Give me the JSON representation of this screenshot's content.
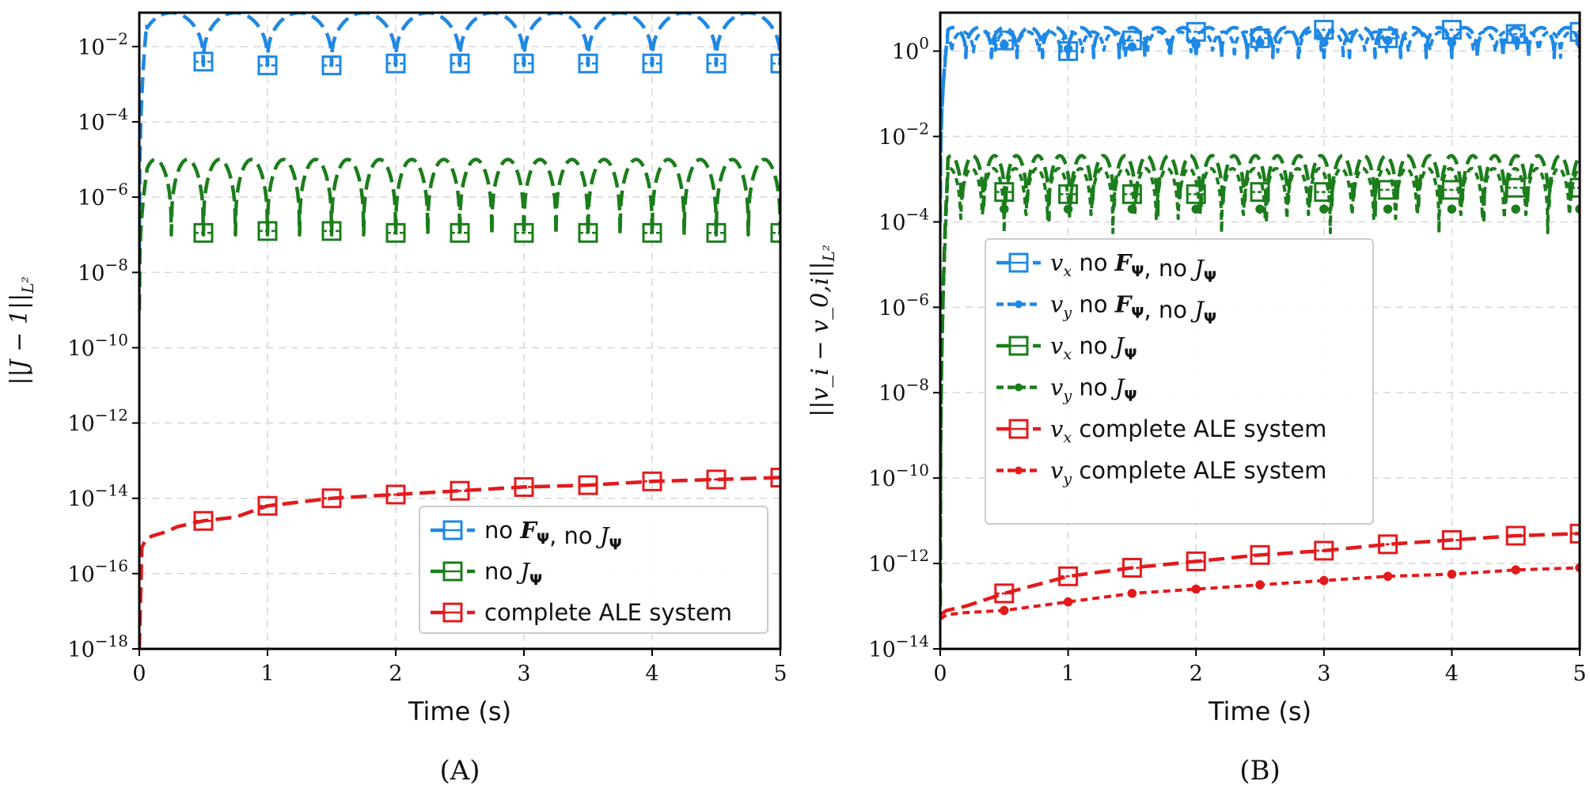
{
  "chart_data": [
    {
      "type": "line",
      "panel_label": "(A)",
      "xlabel": "Time (s)",
      "ylabel": "||J − 1||",
      "ylabel_sub": "L²",
      "yscale": "log",
      "xlim": [
        0,
        5
      ],
      "ylim_exp": [
        -18,
        -1.1
      ],
      "x_ticks": [
        "0",
        "1",
        "2",
        "3",
        "4",
        "5"
      ],
      "y_ticks": [
        {
          "exp": -18,
          "label": "10",
          "sup": "−18"
        },
        {
          "exp": -16,
          "label": "10",
          "sup": "−16"
        },
        {
          "exp": -14,
          "label": "10",
          "sup": "−14"
        },
        {
          "exp": -12,
          "label": "10",
          "sup": "−12"
        },
        {
          "exp": -10,
          "label": "10",
          "sup": "−10"
        },
        {
          "exp": -8,
          "label": "10",
          "sup": "−8"
        },
        {
          "exp": -6,
          "label": "10",
          "sup": "−6"
        },
        {
          "exp": -4,
          "label": "10",
          "sup": "−4"
        },
        {
          "exp": -2,
          "label": "10",
          "sup": "−2"
        }
      ],
      "grid": true,
      "legend_position": "lower-right",
      "series": [
        {
          "name": "no F_Ψ, no J_Ψ",
          "legend_parts": [
            "no ",
            "F",
            "Ψ",
            ", no ",
            "J",
            "Ψ"
          ],
          "color": "#1e88e5",
          "marker": "square",
          "style": "oscillating",
          "base_exp": -1.8,
          "amp": 0.7,
          "period": 0.5,
          "phase": 0.0,
          "startup_from": -7.5,
          "marker_x": [
            0.5,
            1.0,
            1.5,
            2.0,
            2.5,
            3.0,
            3.5,
            4.0,
            4.5,
            5.0
          ],
          "marker_exp": [
            -2.4,
            -2.5,
            -2.5,
            -2.45,
            -2.45,
            -2.45,
            -2.45,
            -2.45,
            -2.45,
            -2.45
          ]
        },
        {
          "name": "no J_Ψ",
          "legend_parts": [
            "no ",
            "",
            "",
            "",
            "J",
            "Ψ"
          ],
          "color": "#1b7d1b",
          "marker": "square",
          "style": "oscillating",
          "base_exp": -6.0,
          "amp": 1.0,
          "period": 0.25,
          "phase": 0.0,
          "startup_from": -9.0,
          "marker_x": [
            0.5,
            1.0,
            1.5,
            2.0,
            2.5,
            3.0,
            3.5,
            4.0,
            4.5,
            5.0
          ],
          "marker_exp": [
            -6.95,
            -6.9,
            -6.9,
            -6.95,
            -6.95,
            -6.95,
            -6.95,
            -6.95,
            -6.95,
            -6.95
          ]
        },
        {
          "name": "complete ALE system",
          "legend_parts": [
            "complete ALE system",
            "",
            "",
            "",
            "",
            ""
          ],
          "color": "#e31a1c",
          "marker": "square",
          "style": "smooth",
          "x": [
            0.0,
            0.02,
            0.05,
            0.1,
            0.2,
            0.3,
            0.5,
            0.75,
            1.0,
            1.5,
            2.0,
            2.5,
            3.0,
            3.5,
            4.0,
            4.5,
            5.0
          ],
          "y_exp": [
            -18.0,
            -15.3,
            -15.1,
            -15.0,
            -14.9,
            -14.75,
            -14.6,
            -14.5,
            -14.2,
            -14.0,
            -13.9,
            -13.8,
            -13.7,
            -13.65,
            -13.55,
            -13.5,
            -13.45
          ],
          "marker_x": [
            0.5,
            1.0,
            1.5,
            2.0,
            2.5,
            3.0,
            3.5,
            4.0,
            4.5,
            5.0
          ],
          "marker_exp": [
            -14.6,
            -14.2,
            -14.0,
            -13.9,
            -13.8,
            -13.7,
            -13.65,
            -13.55,
            -13.5,
            -13.45
          ]
        }
      ]
    },
    {
      "type": "line",
      "panel_label": "(B)",
      "xlabel": "Time (s)",
      "ylabel": "||v_i − v_0,i||",
      "ylabel_sub": "L²",
      "yscale": "log",
      "xlim": [
        0,
        5
      ],
      "ylim_exp": [
        -14,
        0.9
      ],
      "x_ticks": [
        "0",
        "1",
        "2",
        "3",
        "4",
        "5"
      ],
      "y_ticks": [
        {
          "exp": -14,
          "label": "10",
          "sup": "−14"
        },
        {
          "exp": -12,
          "label": "10",
          "sup": "−12"
        },
        {
          "exp": -10,
          "label": "10",
          "sup": "−10"
        },
        {
          "exp": -8,
          "label": "10",
          "sup": "−8"
        },
        {
          "exp": -6,
          "label": "10",
          "sup": "−6"
        },
        {
          "exp": -4,
          "label": "10",
          "sup": "−4"
        },
        {
          "exp": -2,
          "label": "10",
          "sup": "−2"
        },
        {
          "exp": 0,
          "label": "10",
          "sup": "0"
        }
      ],
      "grid": true,
      "legend_position": "center-left",
      "series": [
        {
          "name": "v_x no F_Ψ, no J_Ψ",
          "legend_parts": [
            "v",
            "x",
            " no ",
            "F",
            "Ψ",
            ", no ",
            "J",
            "Ψ"
          ],
          "color": "#1e88e5",
          "marker": "square",
          "style": "oscillating",
          "base_exp": 0.2,
          "amp": 0.35,
          "period": 0.2,
          "phase": 0.0,
          "startup_from": -4.0,
          "marker_x": [
            0.5,
            1.0,
            1.5,
            2.0,
            2.5,
            3.0,
            3.5,
            4.0,
            4.5,
            5.0
          ],
          "marker_exp": [
            0.25,
            0.0,
            0.25,
            0.45,
            0.3,
            0.5,
            0.3,
            0.5,
            0.4,
            0.45
          ]
        },
        {
          "name": "v_y no F_Ψ, no J_Ψ",
          "legend_parts": [
            "v",
            "y",
            " no ",
            "F",
            "Ψ",
            ", no ",
            "J",
            "Ψ"
          ],
          "color": "#1e88e5",
          "marker": "circle",
          "style": "oscillating",
          "base_exp": 0.15,
          "amp": 0.3,
          "period": 0.17,
          "phase": 0.6,
          "startup_from": -4.0,
          "marker_x": [
            0.5,
            1.0,
            1.5,
            2.0,
            2.5,
            3.0,
            3.5,
            4.0,
            4.5,
            5.0
          ],
          "marker_exp": [
            0.15,
            0.05,
            0.1,
            0.15,
            0.2,
            0.2,
            0.25,
            0.2,
            0.25,
            0.2
          ]
        },
        {
          "name": "v_x no J_Ψ",
          "legend_parts": [
            "v",
            "x",
            " no ",
            "",
            "",
            "",
            "J",
            "Ψ"
          ],
          "color": "#1b7d1b",
          "marker": "square",
          "style": "oscillating",
          "base_exp": -3.2,
          "amp": 0.75,
          "period": 0.17,
          "phase": 0.0,
          "startup_from": -13.0,
          "marker_x": [
            0.5,
            1.0,
            1.5,
            2.0,
            2.5,
            3.0,
            3.5,
            4.0,
            4.5,
            5.0
          ],
          "marker_exp": [
            -3.3,
            -3.35,
            -3.35,
            -3.35,
            -3.3,
            -3.3,
            -3.25,
            -3.25,
            -3.2,
            -3.2
          ]
        },
        {
          "name": "v_y no J_Ψ",
          "legend_parts": [
            "v",
            "y",
            " no ",
            "",
            "",
            "",
            "J",
            "Ψ"
          ],
          "color": "#1b7d1b",
          "marker": "circle",
          "style": "oscillating",
          "base_exp": -3.5,
          "amp": 0.75,
          "period": 0.17,
          "phase": 0.5,
          "startup_from": -13.0,
          "marker_x": [
            0.5,
            1.0,
            1.5,
            2.0,
            2.5,
            3.0,
            3.5,
            4.0,
            4.5,
            5.0
          ],
          "marker_exp": [
            -3.7,
            -3.7,
            -3.7,
            -3.7,
            -3.7,
            -3.7,
            -3.7,
            -3.7,
            -3.7,
            -3.7
          ]
        },
        {
          "name": "v_x complete ALE system",
          "legend_parts": [
            "v",
            "x",
            " complete ALE system",
            "",
            "",
            "",
            "",
            ""
          ],
          "color": "#e31a1c",
          "marker": "square",
          "style": "smooth",
          "x": [
            0.0,
            0.05,
            0.2,
            0.5,
            1.0,
            1.5,
            2.0,
            2.5,
            3.0,
            3.5,
            4.0,
            4.5,
            5.0
          ],
          "y_exp": [
            -13.2,
            -13.1,
            -13.0,
            -12.7,
            -12.3,
            -12.1,
            -11.95,
            -11.8,
            -11.7,
            -11.55,
            -11.45,
            -11.35,
            -11.3
          ],
          "marker_x": [
            0.5,
            1.0,
            1.5,
            2.0,
            2.5,
            3.0,
            3.5,
            4.0,
            4.5,
            5.0
          ],
          "marker_exp": [
            -12.7,
            -12.3,
            -12.1,
            -11.95,
            -11.8,
            -11.7,
            -11.55,
            -11.45,
            -11.35,
            -11.3
          ]
        },
        {
          "name": "v_y complete ALE system",
          "legend_parts": [
            "v",
            "y",
            " complete ALE system",
            "",
            "",
            "",
            "",
            ""
          ],
          "color": "#e31a1c",
          "marker": "circle",
          "style": "smooth",
          "x": [
            0.0,
            0.05,
            0.2,
            0.5,
            1.0,
            1.5,
            2.0,
            2.5,
            3.0,
            3.5,
            4.0,
            4.5,
            5.0
          ],
          "y_exp": [
            -13.3,
            -13.2,
            -13.15,
            -13.1,
            -12.9,
            -12.7,
            -12.6,
            -12.5,
            -12.4,
            -12.3,
            -12.25,
            -12.15,
            -12.1
          ],
          "marker_x": [
            0.5,
            1.0,
            1.5,
            2.0,
            2.5,
            3.0,
            3.5,
            4.0,
            4.5,
            5.0
          ],
          "marker_exp": [
            -13.1,
            -12.9,
            -12.7,
            -12.6,
            -12.5,
            -12.4,
            -12.3,
            -12.25,
            -12.15,
            -12.1
          ]
        }
      ]
    }
  ]
}
